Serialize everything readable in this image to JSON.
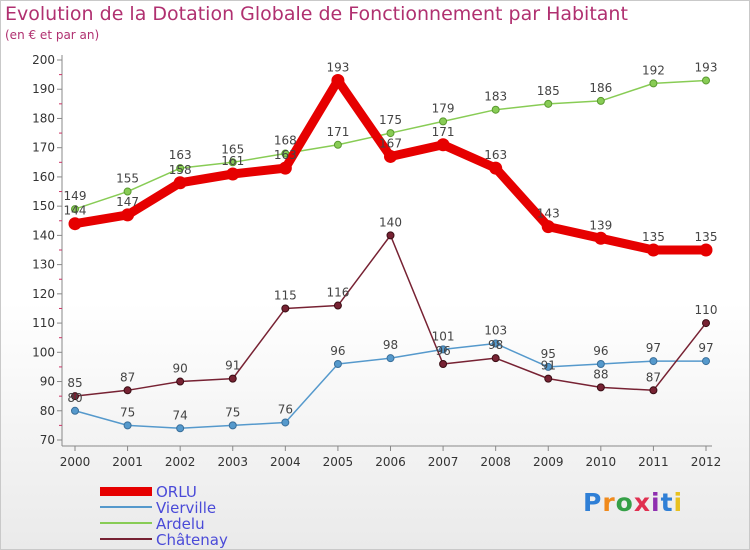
{
  "title": "Evolution de la Dotation Globale de Fonctionnement par Habitant",
  "subtitle": "(en € et par an)",
  "logo": {
    "letters": [
      "P",
      "r",
      "o",
      "x",
      "i",
      "t",
      "i"
    ],
    "colors": [
      "#2f7fd6",
      "#f08a1c",
      "#35a047",
      "#e03050",
      "#8f2fb0",
      "#2f7fd6",
      "#e8c11f"
    ]
  },
  "chart_data": {
    "type": "line",
    "title": "Evolution de la Dotation Globale de Fonctionnement par Habitant",
    "subtitle": "(en € et par an)",
    "x": [
      "2000",
      "2001",
      "2002",
      "2003",
      "2004",
      "2005",
      "2006",
      "2007",
      "2008",
      "2009",
      "2010",
      "2011",
      "2012"
    ],
    "ylim": [
      70,
      200
    ],
    "yticks": [
      70,
      80,
      90,
      100,
      110,
      120,
      130,
      140,
      150,
      160,
      170,
      180,
      190,
      200
    ],
    "grid": false,
    "legend_position": "bottom-left",
    "series": [
      {
        "name": "ORLU",
        "color": "#e60000",
        "values": [
          144,
          147,
          158,
          161,
          163,
          193,
          167,
          171,
          163,
          143,
          139,
          135,
          135
        ]
      },
      {
        "name": "Vierville",
        "color": "#5599cc",
        "values": [
          80,
          75,
          74,
          75,
          76,
          96,
          98,
          101,
          103,
          95,
          96,
          97,
          97
        ]
      },
      {
        "name": "Ardelu",
        "color": "#88cc55",
        "values": [
          149,
          155,
          163,
          165,
          168,
          171,
          175,
          179,
          183,
          185,
          186,
          192,
          193
        ]
      },
      {
        "name": "Châtenay",
        "color": "#772233",
        "values": [
          85,
          87,
          90,
          91,
          115,
          116,
          140,
          96,
          98,
          91,
          88,
          87,
          110
        ]
      }
    ]
  }
}
